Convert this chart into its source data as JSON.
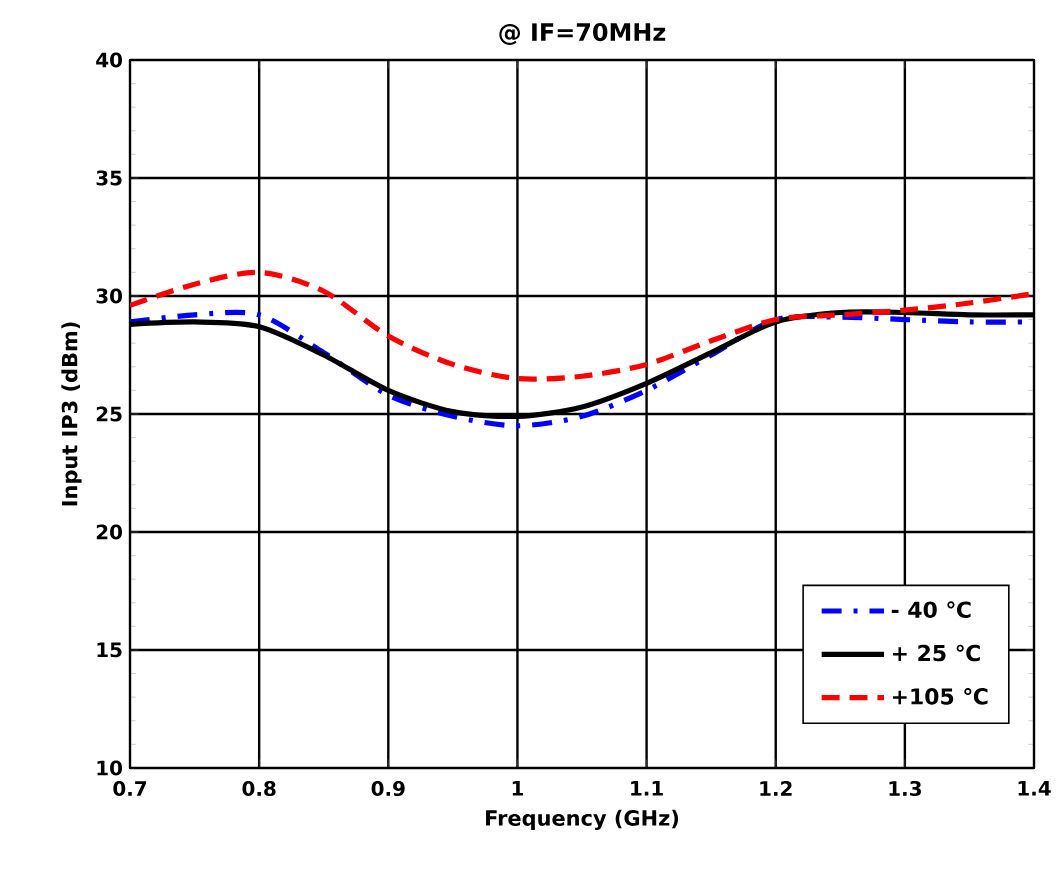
{
  "chart_data": {
    "type": "line",
    "title": "@ IF=70MHz",
    "xlabel": "Frequency (GHz)",
    "ylabel": "Input IP3 (dBm)",
    "x": [
      0.7,
      0.75,
      0.8,
      0.85,
      0.9,
      0.95,
      1.0,
      1.05,
      1.1,
      1.15,
      1.2,
      1.25,
      1.3,
      1.35,
      1.4
    ],
    "series": [
      {
        "name": "- 40 ℃",
        "color": "#0000ff",
        "line_style": "dotted",
        "values": [
          28.9,
          29.2,
          29.2,
          27.6,
          25.8,
          24.9,
          24.5,
          24.9,
          26.0,
          27.5,
          29.0,
          29.1,
          29.0,
          28.9,
          28.9
        ]
      },
      {
        "name": "+ 25 ℃",
        "color": "#000000",
        "line_style": "solid",
        "values": [
          28.8,
          28.9,
          28.7,
          27.5,
          26.0,
          25.1,
          24.9,
          25.3,
          26.3,
          27.6,
          28.9,
          29.3,
          29.3,
          29.2,
          29.2
        ]
      },
      {
        "name": "+105 ℃",
        "color": "#ff0000",
        "line_style": "dashed",
        "values": [
          29.6,
          30.5,
          31.0,
          30.2,
          28.3,
          27.1,
          26.5,
          26.6,
          27.1,
          28.1,
          29.0,
          29.2,
          29.4,
          29.7,
          30.1
        ]
      }
    ],
    "xlim": [
      0.7,
      1.4
    ],
    "xticks": [
      0.7,
      0.8,
      0.9,
      1,
      1.1,
      1.2,
      1.3,
      1.4
    ],
    "ylim": [
      10,
      40
    ],
    "yticks": [
      10,
      15,
      20,
      25,
      30,
      35,
      40
    ],
    "grid": true,
    "legend": "bottom right",
    "marker": "none"
  }
}
